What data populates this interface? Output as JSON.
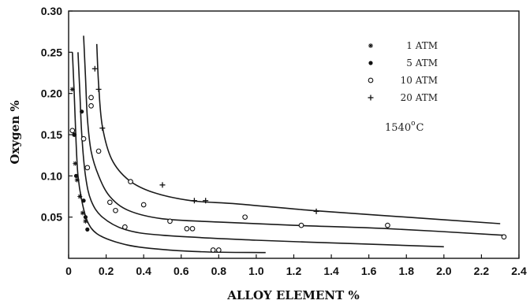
{
  "chart_data": {
    "type": "line",
    "xlabel": "ALLOY ELEMENT %",
    "ylabel": "Oxygen  %",
    "xlim": [
      0,
      2.4
    ],
    "ylim": [
      0,
      0.3
    ],
    "xticks": [
      "0",
      "0.2",
      "0.4",
      "0.6",
      "0.8",
      "1.0",
      "1.2",
      "1.4",
      "1.6",
      "1.8",
      "2.0",
      "2.2",
      "2.4"
    ],
    "yticks": [
      "0.05",
      "0.10",
      "0.15",
      "0.20",
      "0.25",
      "0.30"
    ],
    "grid": false,
    "legend_position": "top-right",
    "annotation": {
      "text": "1540",
      "superscript": "o",
      "unit": "C"
    },
    "series": [
      {
        "name": "1 ATM",
        "marker": "star",
        "curve": [
          [
            0.02,
            0.25
          ],
          [
            0.03,
            0.2
          ],
          [
            0.04,
            0.14
          ],
          [
            0.05,
            0.1
          ],
          [
            0.07,
            0.07
          ],
          [
            0.1,
            0.045
          ],
          [
            0.15,
            0.03
          ],
          [
            0.25,
            0.02
          ],
          [
            0.4,
            0.013
          ],
          [
            0.7,
            0.008
          ],
          [
            1.05,
            0.007
          ]
        ],
        "points": [
          [
            0.02,
            0.205
          ],
          [
            0.03,
            0.15
          ],
          [
            0.035,
            0.115
          ],
          [
            0.045,
            0.095
          ],
          [
            0.06,
            0.075
          ],
          [
            0.075,
            0.055
          ],
          [
            0.09,
            0.045
          ]
        ]
      },
      {
        "name": "5 ATM",
        "marker": "filled-circle",
        "curve": [
          [
            0.05,
            0.25
          ],
          [
            0.06,
            0.2
          ],
          [
            0.07,
            0.15
          ],
          [
            0.09,
            0.1
          ],
          [
            0.12,
            0.07
          ],
          [
            0.18,
            0.05
          ],
          [
            0.3,
            0.035
          ],
          [
            0.5,
            0.028
          ],
          [
            1.0,
            0.022
          ],
          [
            1.5,
            0.018
          ],
          [
            2.0,
            0.014
          ]
        ],
        "points": [
          [
            0.03,
            0.15
          ],
          [
            0.04,
            0.1
          ],
          [
            0.07,
            0.178
          ],
          [
            0.08,
            0.07
          ],
          [
            0.09,
            0.05
          ],
          [
            0.1,
            0.035
          ]
        ]
      },
      {
        "name": "10 ATM",
        "marker": "open-circle",
        "curve": [
          [
            0.08,
            0.27
          ],
          [
            0.09,
            0.22
          ],
          [
            0.1,
            0.17
          ],
          [
            0.12,
            0.13
          ],
          [
            0.16,
            0.1
          ],
          [
            0.22,
            0.075
          ],
          [
            0.32,
            0.058
          ],
          [
            0.5,
            0.048
          ],
          [
            0.8,
            0.044
          ],
          [
            1.2,
            0.04
          ],
          [
            1.7,
            0.036
          ],
          [
            2.32,
            0.028
          ]
        ],
        "points": [
          [
            0.02,
            0.155
          ],
          [
            0.08,
            0.145
          ],
          [
            0.12,
            0.185
          ],
          [
            0.12,
            0.195
          ],
          [
            0.1,
            0.11
          ],
          [
            0.16,
            0.13
          ],
          [
            0.22,
            0.068
          ],
          [
            0.25,
            0.058
          ],
          [
            0.3,
            0.038
          ],
          [
            0.33,
            0.093
          ],
          [
            0.4,
            0.065
          ],
          [
            0.54,
            0.045
          ],
          [
            0.63,
            0.036
          ],
          [
            0.66,
            0.036
          ],
          [
            0.77,
            0.01
          ],
          [
            0.8,
            0.01
          ],
          [
            0.94,
            0.05
          ],
          [
            1.24,
            0.04
          ],
          [
            1.7,
            0.04
          ],
          [
            2.32,
            0.026
          ]
        ]
      },
      {
        "name": "20 ATM",
        "marker": "plus",
        "curve": [
          [
            0.15,
            0.26
          ],
          [
            0.16,
            0.21
          ],
          [
            0.18,
            0.16
          ],
          [
            0.23,
            0.12
          ],
          [
            0.32,
            0.095
          ],
          [
            0.45,
            0.08
          ],
          [
            0.65,
            0.07
          ],
          [
            0.9,
            0.066
          ],
          [
            1.3,
            0.058
          ],
          [
            1.8,
            0.05
          ],
          [
            2.3,
            0.042
          ]
        ],
        "points": [
          [
            0.14,
            0.23
          ],
          [
            0.16,
            0.205
          ],
          [
            0.18,
            0.158
          ],
          [
            0.5,
            0.089
          ],
          [
            0.67,
            0.07
          ],
          [
            0.73,
            0.07
          ],
          [
            1.32,
            0.057
          ]
        ]
      }
    ]
  }
}
